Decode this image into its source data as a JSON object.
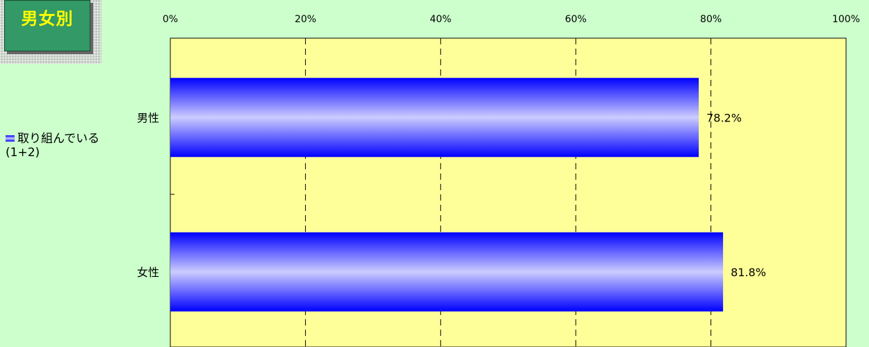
{
  "badge": {
    "label": "男女別"
  },
  "colors": {
    "plot_bg": "#ffff99",
    "page_bg": "#ccffcc",
    "bar_edge": "#0000ff",
    "bar_center": "#ccccff",
    "badge_bg": "#339966",
    "badge_text": "#ffff00"
  },
  "chart_data": {
    "type": "bar",
    "orientation": "horizontal",
    "categories": [
      "男性",
      "女性"
    ],
    "series": [
      {
        "name": "取り組んでいる(1+2)",
        "values": [
          78.2,
          81.8
        ]
      }
    ],
    "data_labels": [
      "78.2%",
      "81.8%"
    ],
    "xlim": [
      0,
      100
    ],
    "x_ticks": [
      "0%",
      "20%",
      "40%",
      "60%",
      "80%",
      "100%"
    ],
    "x_tick_values": [
      0,
      20,
      40,
      60,
      80,
      100
    ],
    "grid": "dashed vertical",
    "legend_position": "left"
  }
}
